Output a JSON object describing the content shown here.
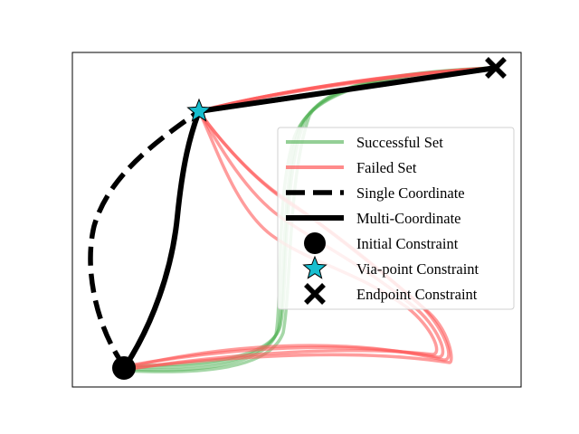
{
  "chart_data": {
    "type": "line",
    "title": "",
    "xlabel": "",
    "ylabel": "",
    "axes_ticks": "none",
    "grid": false,
    "legend_placement": "center-right",
    "colors": {
      "successful": "#4caf50",
      "failed": "#ff5a5a",
      "coordinate": "#000000",
      "via_point": "#17becf"
    },
    "series": [
      {
        "key": "successful",
        "name": "Successful Set",
        "style": "solid",
        "trajectories": 4
      },
      {
        "key": "failed",
        "name": "Failed Set",
        "style": "solid",
        "trajectories": 4
      },
      {
        "key": "single",
        "name": "Single Coordinate",
        "style": "dashed"
      },
      {
        "key": "multi",
        "name": "Multi-Coordinate",
        "style": "solid"
      }
    ],
    "markers": [
      {
        "key": "initial",
        "name": "Initial Constraint",
        "shape": "circle"
      },
      {
        "key": "via",
        "name": "Via-point Constraint",
        "shape": "star"
      },
      {
        "key": "endpoint",
        "name": "Endpoint Constraint",
        "shape": "x"
      }
    ]
  }
}
